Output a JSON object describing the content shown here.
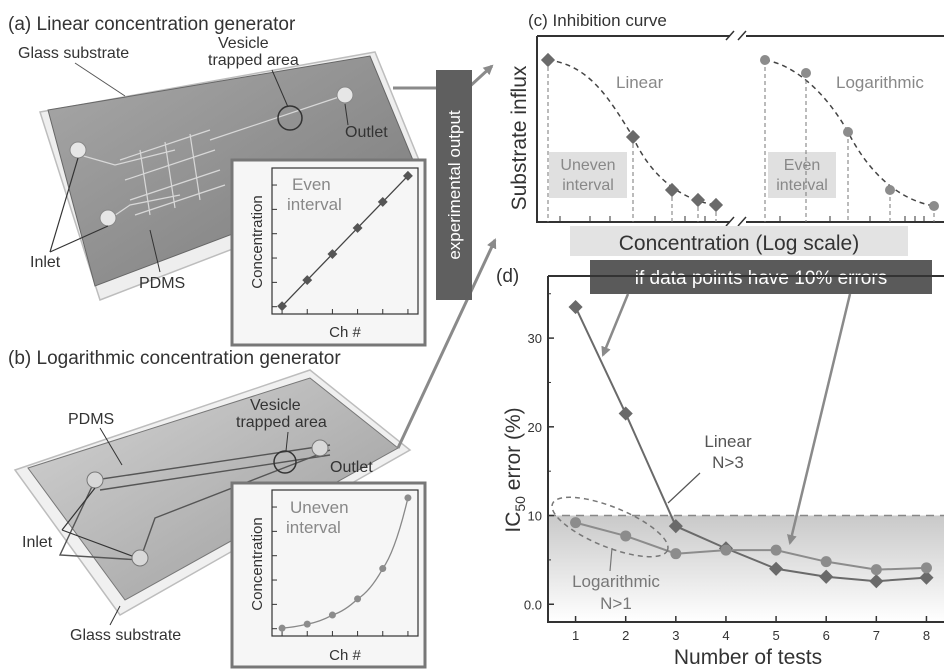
{
  "panel_a": {
    "title": "(a) Linear concentration generator",
    "labels": {
      "glass": "Glass substrate",
      "vesicle_line1": "Vesicle",
      "vesicle_line2": "trapped area",
      "outlet": "Outlet",
      "inlet": "Inlet",
      "pdms": "PDMS"
    },
    "inset": {
      "annotation_line1": "Even",
      "annotation_line2": "interval",
      "ylabel": "Concentration",
      "xlabel": "Ch #"
    }
  },
  "panel_b": {
    "title": "(b) Logarithmic concentration generator",
    "labels": {
      "pdms": "PDMS",
      "vesicle_line1": "Vesicle",
      "vesicle_line2": "trapped area",
      "outlet": "Outlet",
      "inlet": "Inlet",
      "glass": "Glass substrate"
    },
    "inset": {
      "annotation_line1": "Uneven",
      "annotation_line2": "interval",
      "ylabel": "Concentration",
      "xlabel": "Ch #"
    }
  },
  "experimental_output": "experimental output",
  "panel_c": {
    "title": "(c) Inhibition curve",
    "ylabel": "Substrate influx",
    "xlabel": "Concentration (Log scale)",
    "left_label": "Linear",
    "right_label": "Logarithmic",
    "left_box_line1": "Uneven",
    "left_box_line2": "interval",
    "right_box_line1": "Even",
    "right_box_line2": "interval"
  },
  "panel_d": {
    "title": "(d)",
    "banner": "if data points have 10% errors",
    "ylabel_pre": "IC",
    "ylabel_sub": "50",
    "ylabel_post": " error (%)",
    "xlabel": "Number of tests",
    "linear_line1": "Linear",
    "linear_line2": "N>3",
    "log_line1": "Logarithmic",
    "log_line2": "N>1"
  },
  "colors": {
    "linear": "#6a6a6a",
    "logarithmic": "#8c8c8c",
    "banner_bg": "#5a5a5a",
    "arrow": "#8a8a8a"
  },
  "chart_data": [
    {
      "type": "line",
      "panel": "(a) inset",
      "x": [
        1,
        2,
        3,
        4,
        5,
        6
      ],
      "y": [
        0,
        1,
        2,
        3,
        4,
        5
      ],
      "xlabel": "Ch #",
      "ylabel": "Concentration"
    },
    {
      "type": "line",
      "panel": "(b) inset",
      "x": [
        1,
        2,
        3,
        4,
        5,
        6
      ],
      "y": [
        0.1,
        0.5,
        1.4,
        3.0,
        6.0,
        13.0
      ],
      "xlabel": "Ch #",
      "ylabel": "Concentration"
    },
    {
      "type": "line",
      "panel": "(d)",
      "x": [
        1,
        2,
        3,
        4,
        5,
        6,
        7,
        8
      ],
      "xlabel": "Number of tests",
      "ylabel": "IC50 error (%)",
      "yticks": [
        "0.0",
        "10",
        "20",
        "30"
      ],
      "ylim": [
        -2,
        37
      ],
      "threshold": 10,
      "series": [
        {
          "name": "Linear",
          "values": [
            33.5,
            21.5,
            8.8,
            6.3,
            4.0,
            3.1,
            2.6,
            3.0
          ]
        },
        {
          "name": "Logarithmic",
          "values": [
            9.2,
            7.7,
            5.7,
            6.1,
            6.1,
            4.8,
            3.9,
            4.1
          ]
        }
      ]
    }
  ]
}
